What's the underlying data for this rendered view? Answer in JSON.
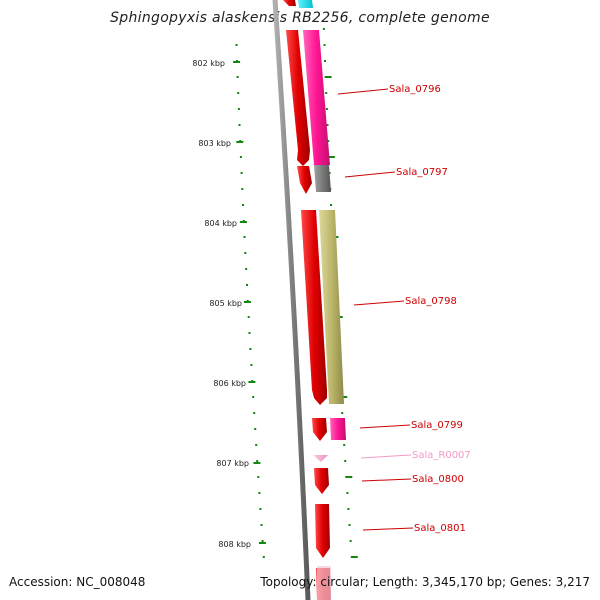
{
  "title": "Sphingopyxis alaskensis RB2256, complete genome",
  "accession": "Accession: NC_008048",
  "summary": "Topology: circular; Length: 3,345,170 bp; Genes: 3,217",
  "ruler": [
    "802 kbp",
    "803 kbp",
    "804 kbp",
    "805 kbp",
    "806 kbp",
    "807 kbp",
    "808 kbp"
  ],
  "genes": [
    {
      "id": "Sala_0796",
      "color": "#cc0000"
    },
    {
      "id": "Sala_0797",
      "color": "#cc0000"
    },
    {
      "id": "Sala_0798",
      "color": "#cc0000"
    },
    {
      "id": "Sala_0799",
      "color": "#cc0000"
    },
    {
      "id": "Sala_R0007",
      "color": "#f29ac7"
    },
    {
      "id": "Sala_0800",
      "color": "#cc0000"
    },
    {
      "id": "Sala_0801",
      "color": "#cc0000"
    }
  ],
  "colors": {
    "cds": "#e00000",
    "rna": "#f4a7cf",
    "backbone": "#8a8a8a",
    "tick": "#118811",
    "label_red": "#cc0000",
    "cog_magenta": "#ff1493",
    "cog_gray": "#7a7a7a",
    "cog_khaki": "#bdb76b",
    "cog_cyan": "#00d5e5"
  }
}
